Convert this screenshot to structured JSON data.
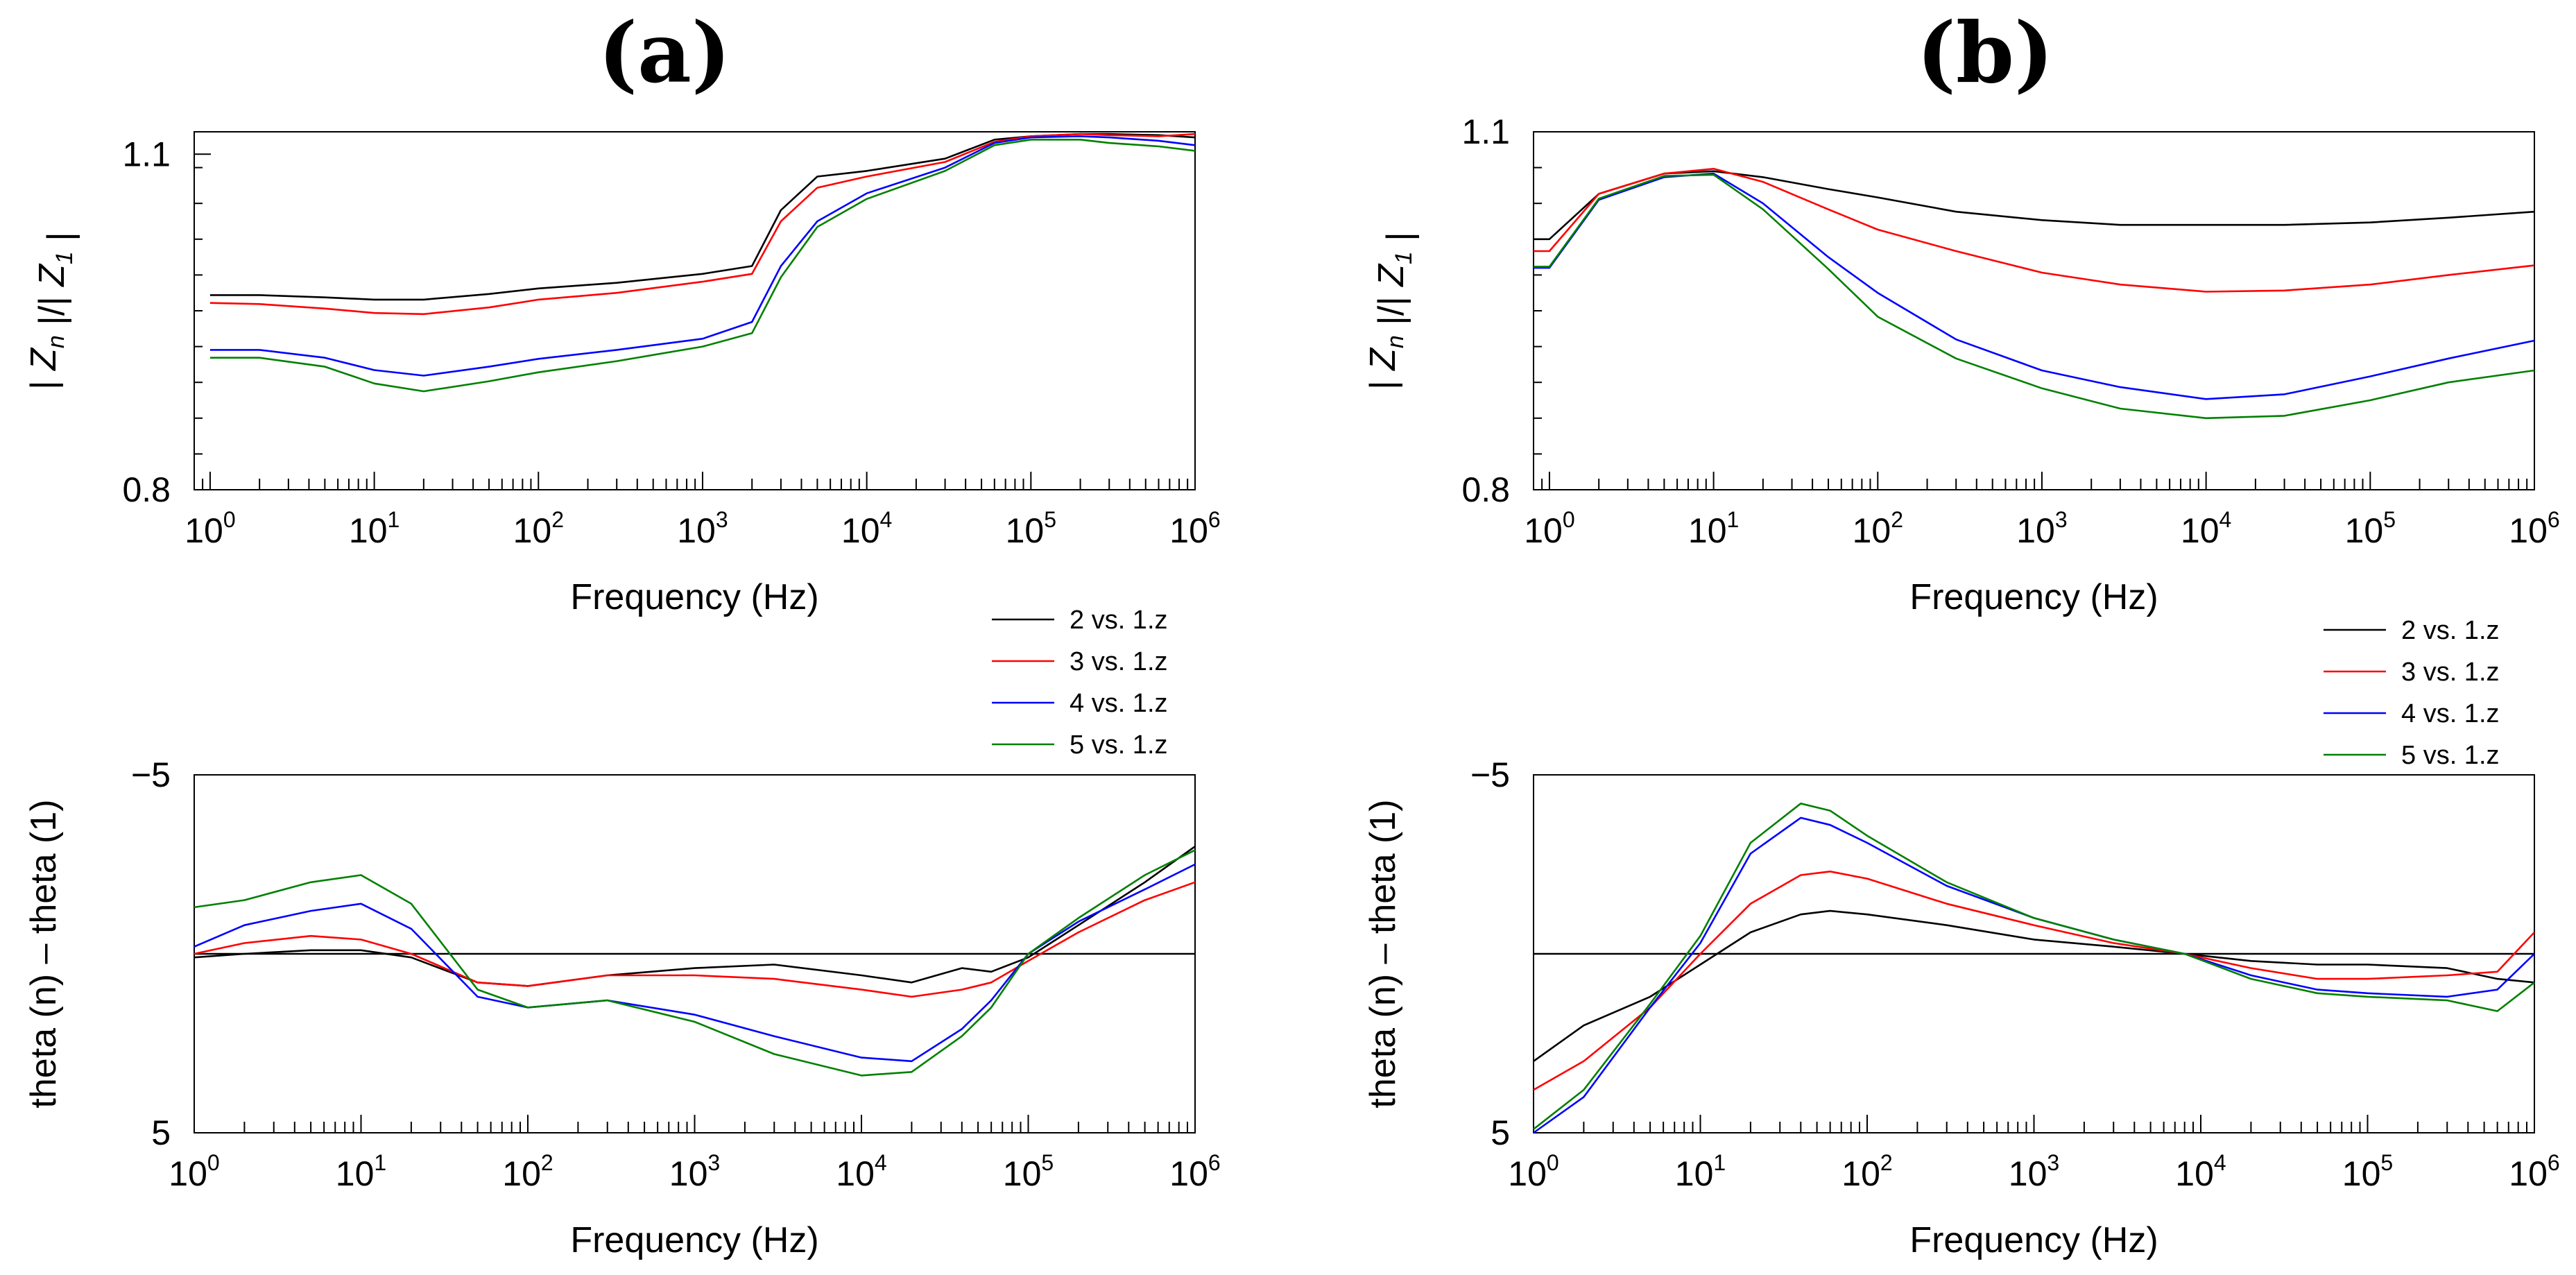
{
  "panels": [
    {
      "id": "a",
      "title": "(a)"
    },
    {
      "id": "b",
      "title": "(b)"
    }
  ],
  "legend": [
    {
      "label": "2 vs. 1.z",
      "color": "#000000"
    },
    {
      "label": "3 vs. 1.z",
      "color": "#ff0000"
    },
    {
      "label": "4 vs. 1.z",
      "color": "#0000ff"
    },
    {
      "label": "5 vs. 1.z",
      "color": "#008000"
    }
  ],
  "chart_data": [
    {
      "panel": "(a)",
      "position": "top",
      "type": "line",
      "xlabel": "Frequency (Hz)",
      "ylabel": "| Z_n |/| Z_1 |",
      "xscale": "log",
      "xlim": [
        0.8,
        1000000
      ],
      "ylim": [
        0.8,
        1.12
      ],
      "yticks": [
        0.8,
        1.1
      ],
      "x": [
        1,
        2,
        5,
        10,
        20,
        50,
        100,
        300,
        1000,
        2000,
        3000,
        5000,
        10000,
        30000,
        60000,
        100000,
        200000,
        300000,
        600000,
        1000000
      ],
      "series": [
        {
          "name": "2 vs. 1.z",
          "values": [
            0.974,
            0.974,
            0.972,
            0.97,
            0.97,
            0.975,
            0.98,
            0.985,
            0.993,
            1.0,
            1.05,
            1.08,
            1.085,
            1.096,
            1.113,
            1.116,
            1.118,
            1.118,
            1.117,
            1.115
          ]
        },
        {
          "name": "3 vs. 1.z",
          "values": [
            0.967,
            0.966,
            0.962,
            0.958,
            0.957,
            0.963,
            0.97,
            0.976,
            0.986,
            0.993,
            1.04,
            1.07,
            1.08,
            1.093,
            1.111,
            1.116,
            1.118,
            1.117,
            1.116,
            1.118
          ]
        },
        {
          "name": "4 vs. 1.z",
          "values": [
            0.925,
            0.925,
            0.918,
            0.907,
            0.902,
            0.91,
            0.917,
            0.925,
            0.935,
            0.95,
            1.0,
            1.04,
            1.065,
            1.088,
            1.11,
            1.115,
            1.116,
            1.115,
            1.112,
            1.108
          ]
        },
        {
          "name": "5 vs. 1.z",
          "values": [
            0.918,
            0.918,
            0.91,
            0.895,
            0.888,
            0.897,
            0.905,
            0.915,
            0.928,
            0.94,
            0.99,
            1.035,
            1.06,
            1.085,
            1.108,
            1.113,
            1.113,
            1.11,
            1.107,
            1.103
          ]
        }
      ]
    },
    {
      "panel": "(a)",
      "position": "bottom",
      "type": "line",
      "xlabel": "Frequency (Hz)",
      "ylabel": "theta (n) – theta (1)",
      "xscale": "log",
      "xlim": [
        1,
        1000000
      ],
      "ylim": [
        5,
        -5
      ],
      "yticks": [
        -5,
        5
      ],
      "x": [
        1,
        2,
        5,
        10,
        20,
        50,
        100,
        300,
        1000,
        3000,
        10000,
        20000,
        40000,
        60000,
        100000,
        200000,
        500000,
        1000000
      ],
      "series": [
        {
          "name": "2 vs. 1.z",
          "values": [
            0.1,
            0.0,
            -0.1,
            -0.1,
            0.1,
            0.8,
            0.9,
            0.6,
            0.4,
            0.3,
            0.6,
            0.8,
            0.4,
            0.5,
            0.1,
            -0.8,
            -2.0,
            -3.0
          ]
        },
        {
          "name": "3 vs. 1.z",
          "values": [
            0.0,
            -0.3,
            -0.5,
            -0.4,
            0.0,
            0.8,
            0.9,
            0.6,
            0.6,
            0.7,
            1.0,
            1.2,
            1.0,
            0.8,
            0.2,
            -0.6,
            -1.5,
            -2.0
          ]
        },
        {
          "name": "4 vs. 1.z",
          "values": [
            -0.2,
            -0.8,
            -1.2,
            -1.4,
            -0.7,
            1.2,
            1.5,
            1.3,
            1.7,
            2.3,
            2.9,
            3.0,
            2.1,
            1.3,
            0.0,
            -0.9,
            -1.8,
            -2.5
          ]
        },
        {
          "name": "5 vs. 1.z",
          "values": [
            -1.3,
            -1.5,
            -2.0,
            -2.2,
            -1.4,
            1.0,
            1.5,
            1.3,
            1.9,
            2.8,
            3.4,
            3.3,
            2.3,
            1.5,
            0.0,
            -1.0,
            -2.2,
            -2.9
          ]
        }
      ]
    },
    {
      "panel": "(b)",
      "position": "top",
      "type": "line",
      "xlabel": "Frequency (Hz)",
      "ylabel": "| Z_n |/| Z_1 |",
      "xscale": "log",
      "xlim": [
        0.8,
        1000000
      ],
      "ylim": [
        0.8,
        1.1
      ],
      "yticks": [
        0.8,
        1.1
      ],
      "x": [
        0.8,
        1,
        2,
        5,
        10,
        20,
        50,
        100,
        300,
        1000,
        3000,
        10000,
        30000,
        100000,
        300000,
        1000000
      ],
      "series": [
        {
          "name": "2 vs. 1.z",
          "values": [
            1.01,
            1.01,
            1.048,
            1.065,
            1.067,
            1.062,
            1.052,
            1.045,
            1.033,
            1.026,
            1.022,
            1.022,
            1.022,
            1.024,
            1.028,
            1.033
          ]
        },
        {
          "name": "3 vs. 1.z",
          "values": [
            1.0,
            1.0,
            1.048,
            1.065,
            1.069,
            1.058,
            1.035,
            1.018,
            1.0,
            0.982,
            0.972,
            0.966,
            0.967,
            0.972,
            0.98,
            0.988
          ]
        },
        {
          "name": "4 vs. 1.z",
          "values": [
            0.986,
            0.986,
            1.043,
            1.062,
            1.065,
            1.04,
            0.995,
            0.965,
            0.926,
            0.9,
            0.886,
            0.876,
            0.88,
            0.895,
            0.91,
            0.925
          ]
        },
        {
          "name": "5 vs. 1.z",
          "values": [
            0.987,
            0.987,
            1.044,
            1.063,
            1.064,
            1.035,
            0.985,
            0.945,
            0.91,
            0.885,
            0.868,
            0.86,
            0.862,
            0.875,
            0.89,
            0.9
          ]
        }
      ]
    },
    {
      "panel": "(b)",
      "position": "bottom",
      "type": "line",
      "xlabel": "Frequency (Hz)",
      "ylabel": "theta (n) – theta (1)",
      "xscale": "log",
      "xlim": [
        1,
        1000000
      ],
      "ylim": [
        5,
        -5
      ],
      "yticks": [
        -5,
        5
      ],
      "x": [
        1,
        2,
        5,
        10,
        20,
        40,
        60,
        100,
        300,
        1000,
        3000,
        8000,
        20000,
        50000,
        100000,
        300000,
        600000,
        1000000
      ],
      "series": [
        {
          "name": "2 vs. 1.z",
          "values": [
            3.0,
            2.0,
            1.2,
            0.3,
            -0.6,
            -1.1,
            -1.2,
            -1.1,
            -0.8,
            -0.4,
            -0.2,
            0.0,
            0.2,
            0.3,
            0.3,
            0.4,
            0.7,
            0.8
          ]
        },
        {
          "name": "3 vs. 1.z",
          "values": [
            3.8,
            3.0,
            1.5,
            0.0,
            -1.4,
            -2.2,
            -2.3,
            -2.1,
            -1.4,
            -0.8,
            -0.3,
            0.0,
            0.4,
            0.7,
            0.7,
            0.6,
            0.5,
            -0.6
          ]
        },
        {
          "name": "4 vs. 1.z",
          "values": [
            5.0,
            4.0,
            1.5,
            -0.3,
            -2.8,
            -3.8,
            -3.6,
            -3.1,
            -1.9,
            -1.0,
            -0.4,
            0.0,
            0.6,
            1.0,
            1.1,
            1.2,
            1.0,
            0.0
          ]
        },
        {
          "name": "5 vs. 1.z",
          "values": [
            4.9,
            3.8,
            1.4,
            -0.5,
            -3.1,
            -4.2,
            -4.0,
            -3.3,
            -2.0,
            -1.0,
            -0.4,
            0.0,
            0.7,
            1.1,
            1.2,
            1.3,
            1.6,
            0.8
          ]
        }
      ]
    }
  ]
}
